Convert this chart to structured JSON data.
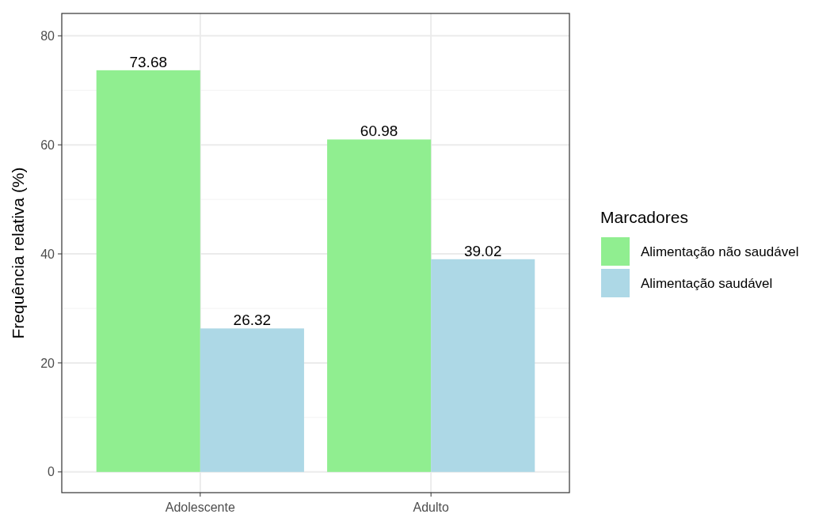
{
  "chart_data": {
    "type": "bar",
    "ylabel": "Frequência relativa (%)",
    "legend_title": "Marcadores",
    "categories": [
      "Adolescente",
      "Adulto"
    ],
    "series": [
      {
        "name": "Alimentação não saudável",
        "color": "#90ee90",
        "values": [
          73.68,
          60.98
        ]
      },
      {
        "name": "Alimentação saudável",
        "color": "#add8e6",
        "values": [
          26.32,
          39.02
        ]
      }
    ],
    "ylim": [
      -3.8,
      84.1
    ],
    "yticks": [
      0,
      20,
      40,
      60,
      80
    ],
    "grid": true,
    "legend": "right",
    "data_labels": true
  }
}
